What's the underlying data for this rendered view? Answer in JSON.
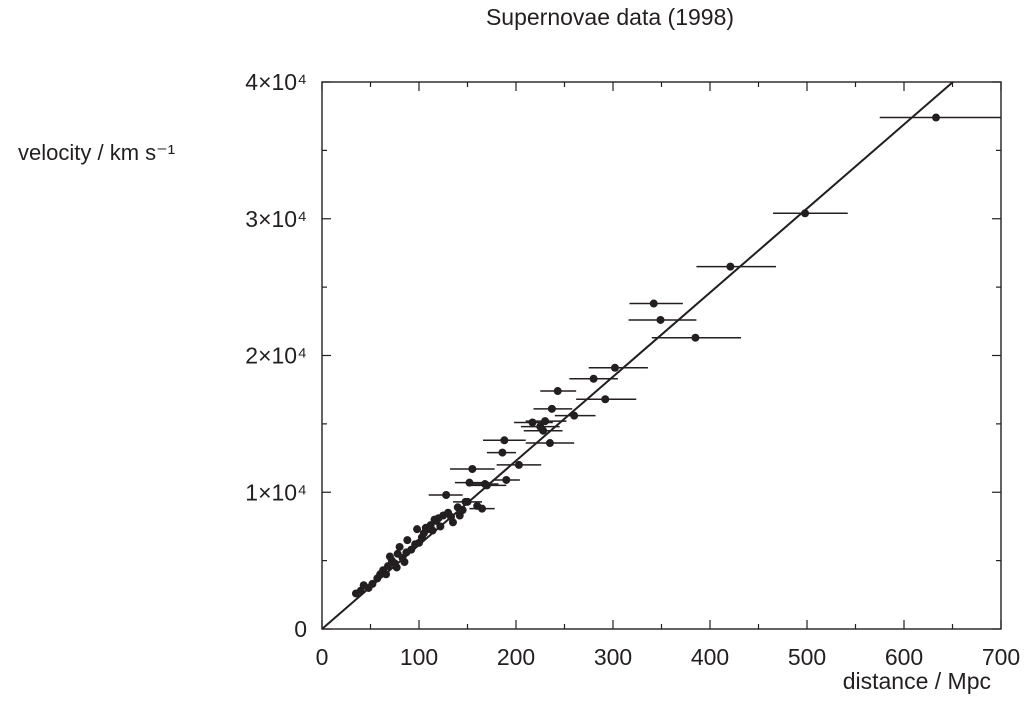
{
  "chart_data": {
    "type": "scatter",
    "title": "Supernovae data (1998)",
    "xlabel": "distance / Mpc",
    "ylabel": "velocity / km s⁻¹",
    "xlim": [
      0,
      700
    ],
    "ylim": [
      0,
      40000
    ],
    "xticks": [
      0,
      100,
      200,
      300,
      400,
      500,
      600,
      700
    ],
    "yticks": [
      0,
      10000,
      20000,
      30000,
      40000
    ],
    "ytick_labels": [
      "0",
      "1×10⁴",
      "2×10⁴",
      "3×10⁴",
      "4×10⁴"
    ],
    "grid": false,
    "fit_line": {
      "slope": 61.5,
      "intercept": 0
    },
    "points": [
      {
        "x": 35,
        "y": 2600
      },
      {
        "x": 40,
        "y": 2800
      },
      {
        "x": 43,
        "y": 3200
      },
      {
        "x": 48,
        "y": 3000
      },
      {
        "x": 52,
        "y": 3300
      },
      {
        "x": 57,
        "y": 3700
      },
      {
        "x": 60,
        "y": 4000
      },
      {
        "x": 63,
        "y": 4300
      },
      {
        "x": 66,
        "y": 4000
      },
      {
        "x": 68,
        "y": 4600
      },
      {
        "x": 70,
        "y": 5300
      },
      {
        "x": 72,
        "y": 5000
      },
      {
        "x": 75,
        "y": 4800
      },
      {
        "x": 77,
        "y": 4500
      },
      {
        "x": 78,
        "y": 5500
      },
      {
        "x": 80,
        "y": 6000
      },
      {
        "x": 83,
        "y": 5200
      },
      {
        "x": 85,
        "y": 4900
      },
      {
        "x": 87,
        "y": 5600
      },
      {
        "x": 88,
        "y": 6500
      },
      {
        "x": 92,
        "y": 5800
      },
      {
        "x": 96,
        "y": 6200
      },
      {
        "x": 98,
        "y": 7300
      },
      {
        "x": 100,
        "y": 6300
      },
      {
        "x": 103,
        "y": 6700
      },
      {
        "x": 105,
        "y": 7000
      },
      {
        "x": 107,
        "y": 7400
      },
      {
        "x": 110,
        "y": 7300
      },
      {
        "x": 112,
        "y": 7600
      },
      {
        "x": 114,
        "y": 7200
      },
      {
        "x": 116,
        "y": 8000
      },
      {
        "x": 118,
        "y": 7900
      },
      {
        "x": 120,
        "y": 8100
      },
      {
        "x": 122,
        "y": 7500
      },
      {
        "x": 125,
        "y": 8300
      },
      {
        "x": 128,
        "y": 9800
      },
      {
        "x": 130,
        "y": 8500
      },
      {
        "x": 133,
        "y": 8200
      },
      {
        "x": 135,
        "y": 7800
      },
      {
        "x": 140,
        "y": 8900
      },
      {
        "x": 142,
        "y": 8300
      },
      {
        "x": 145,
        "y": 8700
      },
      {
        "x": 148,
        "y": 9300
      },
      {
        "x": 150,
        "y": 9300
      },
      {
        "x": 152,
        "y": 10700
      },
      {
        "x": 155,
        "y": 11700
      },
      {
        "x": 160,
        "y": 9000
      },
      {
        "x": 165,
        "y": 8800
      },
      {
        "x": 168,
        "y": 10600
      },
      {
        "x": 170,
        "y": 10500
      },
      {
        "x": 186,
        "y": 12900
      },
      {
        "x": 188,
        "y": 13800
      },
      {
        "x": 190,
        "y": 10900
      },
      {
        "x": 203,
        "y": 12000
      },
      {
        "x": 217,
        "y": 15100
      },
      {
        "x": 225,
        "y": 14800
      },
      {
        "x": 228,
        "y": 14500
      },
      {
        "x": 230,
        "y": 15200
      },
      {
        "x": 235,
        "y": 13600
      },
      {
        "x": 237,
        "y": 16100
      },
      {
        "x": 243,
        "y": 17400
      },
      {
        "x": 260,
        "y": 15600
      },
      {
        "x": 280,
        "y": 18300
      },
      {
        "x": 292,
        "y": 16800
      },
      {
        "x": 302,
        "y": 19100
      },
      {
        "x": 342,
        "y": 23800
      },
      {
        "x": 349,
        "y": 22600
      },
      {
        "x": 385,
        "y": 21300
      },
      {
        "x": 421,
        "y": 26500
      },
      {
        "x": 498,
        "y": 30400
      },
      {
        "x": 633,
        "y": 37400
      }
    ],
    "x_errors": [
      {
        "x": 128,
        "y": 9800,
        "xmin": 110,
        "xmax": 145
      },
      {
        "x": 152,
        "y": 10700,
        "xmin": 137,
        "xmax": 168
      },
      {
        "x": 155,
        "y": 11700,
        "xmin": 132,
        "xmax": 178
      },
      {
        "x": 150,
        "y": 9300,
        "xmin": 135,
        "xmax": 165
      },
      {
        "x": 165,
        "y": 8800,
        "xmin": 152,
        "xmax": 178
      },
      {
        "x": 170,
        "y": 10500,
        "xmin": 150,
        "xmax": 190
      },
      {
        "x": 168,
        "y": 10600,
        "xmin": 155,
        "xmax": 182
      },
      {
        "x": 186,
        "y": 12900,
        "xmin": 170,
        "xmax": 200
      },
      {
        "x": 188,
        "y": 13800,
        "xmin": 166,
        "xmax": 210
      },
      {
        "x": 190,
        "y": 10900,
        "xmin": 176,
        "xmax": 204
      },
      {
        "x": 203,
        "y": 12000,
        "xmin": 180,
        "xmax": 226
      },
      {
        "x": 217,
        "y": 15100,
        "xmin": 198,
        "xmax": 238
      },
      {
        "x": 225,
        "y": 14800,
        "xmin": 205,
        "xmax": 245
      },
      {
        "x": 228,
        "y": 14500,
        "xmin": 208,
        "xmax": 248
      },
      {
        "x": 230,
        "y": 15200,
        "xmin": 210,
        "xmax": 252
      },
      {
        "x": 235,
        "y": 13600,
        "xmin": 210,
        "xmax": 260
      },
      {
        "x": 237,
        "y": 16100,
        "xmin": 218,
        "xmax": 258
      },
      {
        "x": 243,
        "y": 17400,
        "xmin": 225,
        "xmax": 262
      },
      {
        "x": 260,
        "y": 15600,
        "xmin": 240,
        "xmax": 282
      },
      {
        "x": 280,
        "y": 18300,
        "xmin": 255,
        "xmax": 305
      },
      {
        "x": 292,
        "y": 16800,
        "xmin": 262,
        "xmax": 324
      },
      {
        "x": 302,
        "y": 19100,
        "xmin": 275,
        "xmax": 336
      },
      {
        "x": 342,
        "y": 23800,
        "xmin": 317,
        "xmax": 372
      },
      {
        "x": 349,
        "y": 22600,
        "xmin": 316,
        "xmax": 386
      },
      {
        "x": 385,
        "y": 21300,
        "xmin": 340,
        "xmax": 432
      },
      {
        "x": 421,
        "y": 26500,
        "xmin": 386,
        "xmax": 468
      },
      {
        "x": 498,
        "y": 30400,
        "xmin": 465,
        "xmax": 542
      },
      {
        "x": 633,
        "y": 37400,
        "xmin": 575,
        "xmax": 700
      }
    ]
  }
}
